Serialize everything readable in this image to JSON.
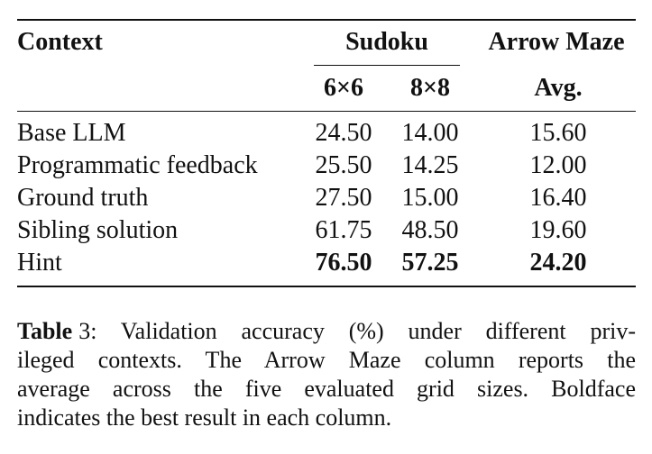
{
  "table": {
    "header": {
      "context": "Context",
      "sudoku": "Sudoku",
      "arrow_maze": "Arrow Maze",
      "sub": [
        "6×6",
        "8×8",
        "Avg."
      ]
    },
    "rows": [
      [
        "Base LLM",
        "24.50",
        "14.00",
        "15.60"
      ],
      [
        "Programmatic feedback",
        "25.50",
        "14.25",
        "12.00"
      ],
      [
        "Ground truth",
        "27.50",
        "15.00",
        "16.40"
      ],
      [
        "Sibling solution",
        "61.75",
        "48.50",
        "19.60"
      ],
      [
        "Hint",
        "76.50",
        "57.25",
        "24.20"
      ]
    ]
  },
  "caption": {
    "label": "Table",
    "number": "3",
    "lines": [
      ": Validation accuracy (%) under different priv-",
      "ileged contexts. The Arrow Maze column reports the",
      "average across the five evaluated grid sizes. Boldface",
      "indicates the best result in each column."
    ]
  }
}
